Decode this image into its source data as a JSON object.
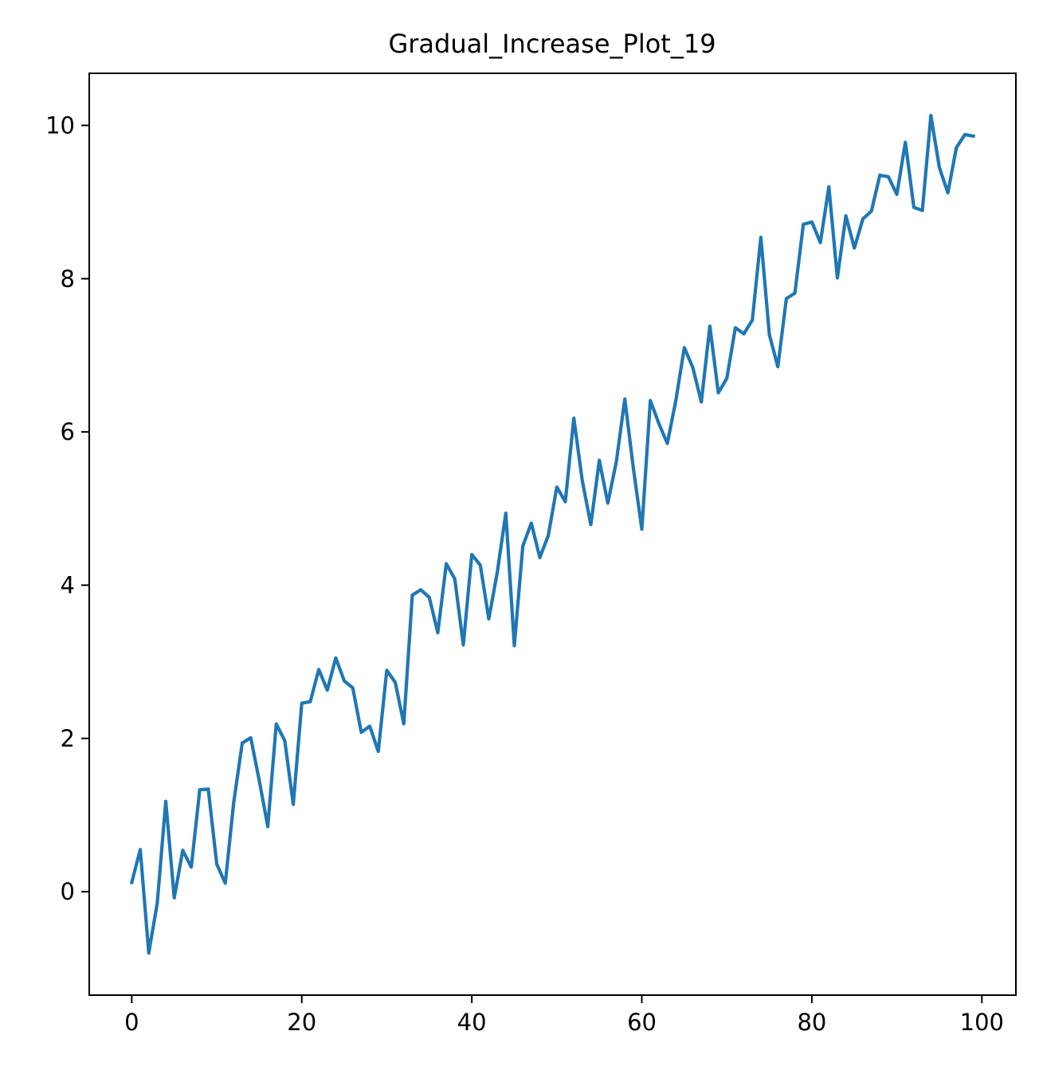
{
  "chart_data": {
    "type": "line",
    "title": "Gradual_Increase_Plot_19",
    "xlabel": "",
    "ylabel": "",
    "xlim": [
      -5,
      104
    ],
    "ylim": [
      -1.35,
      10.68
    ],
    "xticks": [
      0,
      20,
      40,
      60,
      80,
      100
    ],
    "xtick_labels": [
      "0",
      "20",
      "40",
      "60",
      "80",
      "100"
    ],
    "yticks": [
      0,
      2,
      4,
      6,
      8,
      10
    ],
    "ytick_labels": [
      "0",
      "2",
      "4",
      "6",
      "8",
      "10"
    ],
    "grid": false,
    "legend": "none",
    "series": [
      {
        "color": "#1f77b4",
        "x": [
          0,
          1,
          2,
          3,
          4,
          5,
          6,
          7,
          8,
          9,
          10,
          11,
          12,
          13,
          14,
          15,
          16,
          17,
          18,
          19,
          20,
          21,
          22,
          23,
          24,
          25,
          26,
          27,
          28,
          29,
          30,
          31,
          32,
          33,
          34,
          35,
          36,
          37,
          38,
          39,
          40,
          41,
          42,
          43,
          44,
          45,
          46,
          47,
          48,
          49,
          50,
          51,
          52,
          53,
          54,
          55,
          56,
          57,
          58,
          59,
          60,
          61,
          62,
          63,
          64,
          65,
          66,
          67,
          68,
          69,
          70,
          71,
          72,
          73,
          74,
          75,
          76,
          77,
          78,
          79,
          80,
          81,
          82,
          83,
          84,
          85,
          86,
          87,
          88,
          89,
          90,
          91,
          92,
          93,
          94,
          95,
          96,
          97,
          98,
          99
        ],
        "values": [
          0.12,
          0.55,
          -0.8,
          -0.15,
          1.18,
          -0.08,
          0.54,
          0.32,
          1.33,
          1.34,
          0.36,
          0.11,
          1.17,
          1.94,
          2.01,
          1.45,
          0.85,
          2.19,
          1.97,
          1.14,
          2.46,
          2.48,
          2.9,
          2.63,
          3.05,
          2.75,
          2.66,
          2.08,
          2.16,
          1.83,
          2.89,
          2.73,
          2.19,
          3.87,
          3.94,
          3.84,
          3.38,
          4.28,
          4.08,
          3.22,
          4.4,
          4.26,
          3.56,
          4.17,
          4.94,
          3.21,
          4.51,
          4.81,
          4.36,
          4.65,
          5.28,
          5.09,
          6.18,
          5.36,
          4.79,
          5.63,
          5.07,
          5.61,
          6.43,
          5.53,
          4.73,
          6.41,
          6.11,
          5.85,
          6.41,
          7.1,
          6.84,
          6.39,
          7.38,
          6.51,
          6.7,
          7.36,
          7.28,
          7.46,
          8.54,
          7.27,
          6.85,
          7.74,
          7.81,
          8.71,
          8.74,
          8.47,
          9.2,
          8.01,
          8.82,
          8.4,
          8.78,
          8.88,
          9.35,
          9.33,
          9.1,
          9.78,
          8.93,
          8.89,
          10.13,
          9.45,
          9.12,
          9.71,
          9.88,
          9.86
        ]
      }
    ]
  }
}
